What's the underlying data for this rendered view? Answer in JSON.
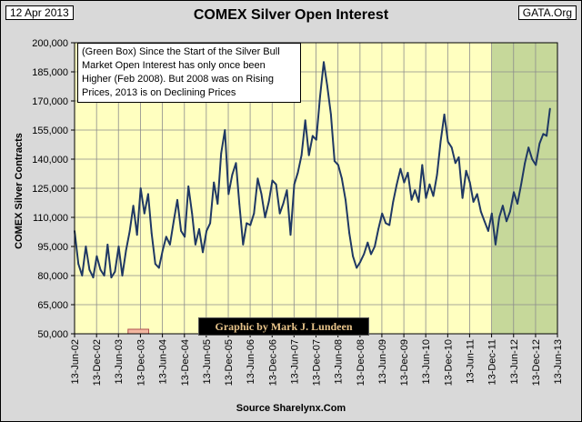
{
  "header": {
    "date": "12 Apr 2013",
    "site": "GATA.Org",
    "source": "Source Sharelynx.Com"
  },
  "chart_data": {
    "type": "line",
    "title": "COMEX Silver Open Interest",
    "ylabel": "COMEX Silver Contracts",
    "xlabel": "",
    "ylim": [
      50000,
      200000
    ],
    "yticks": [
      50000,
      65000,
      80000,
      95000,
      110000,
      125000,
      140000,
      155000,
      170000,
      185000,
      200000
    ],
    "ytick_labels": [
      "50,000",
      "65,000",
      "80,000",
      "95,000",
      "110,000",
      "125,000",
      "140,000",
      "155,000",
      "170,000",
      "185,000",
      "200,000"
    ],
    "xticks": [
      "2002-06-13",
      "2002-12-13",
      "2003-06-13",
      "2003-12-13",
      "2004-06-13",
      "2004-12-13",
      "2005-06-13",
      "2005-12-13",
      "2006-06-13",
      "2006-12-13",
      "2007-06-13",
      "2007-12-13",
      "2008-06-13",
      "2008-12-13",
      "2009-06-13",
      "2009-12-13",
      "2010-06-13",
      "2010-12-13",
      "2011-06-13",
      "2011-12-13",
      "2012-06-13",
      "2012-12-13",
      "2013-06-13"
    ],
    "xtick_labels": [
      "13-Jun-02",
      "13-Dec-02",
      "13-Jun-03",
      "13-Dec-03",
      "13-Jun-04",
      "13-Dec-04",
      "13-Jun-05",
      "13-Dec-05",
      "13-Jun-06",
      "13-Dec-06",
      "13-Jun-07",
      "13-Dec-07",
      "13-Jun-08",
      "13-Dec-08",
      "13-Jun-09",
      "13-Dec-09",
      "13-Jun-10",
      "13-Dec-10",
      "13-Jun-11",
      "13-Dec-11",
      "13-Jun-12",
      "13-Dec-12",
      "13-Jun-13"
    ],
    "xlim": [
      "2002-06-13",
      "2013-06-13"
    ],
    "grid": true,
    "colors": {
      "plot_background": "#ffffc0",
      "highlight": "#c6d89a",
      "line": "#1f3864",
      "small_box": "#f4b7a0",
      "annotation_box": "#ffffff"
    },
    "highlight_range": [
      "2011-12-13",
      "2013-06-13"
    ],
    "small_box_range": [
      "2003-09-01",
      "2004-02-20"
    ],
    "series": [
      {
        "x": [
          "2002-06-13",
          "2002-07-15",
          "2002-08-15",
          "2002-09-15",
          "2002-10-15",
          "2002-11-15",
          "2002-12-15",
          "2003-01-15",
          "2003-02-15",
          "2003-03-15",
          "2003-04-15",
          "2003-05-15",
          "2003-06-15",
          "2003-07-15",
          "2003-08-15",
          "2003-09-15",
          "2003-10-15",
          "2003-11-15",
          "2003-12-15",
          "2004-01-15",
          "2004-02-15",
          "2004-03-15",
          "2004-04-15",
          "2004-05-15",
          "2004-06-15",
          "2004-07-15",
          "2004-08-15",
          "2004-09-15",
          "2004-10-15",
          "2004-11-15",
          "2004-12-15",
          "2005-01-15",
          "2005-02-15",
          "2005-03-15",
          "2005-04-15",
          "2005-05-15",
          "2005-06-15",
          "2005-07-15",
          "2005-08-15",
          "2005-09-15",
          "2005-10-15",
          "2005-11-15",
          "2005-12-15",
          "2006-01-15",
          "2006-02-15",
          "2006-03-15",
          "2006-04-15",
          "2006-05-15",
          "2006-06-15",
          "2006-07-15",
          "2006-08-15",
          "2006-09-15",
          "2006-10-15",
          "2006-11-15",
          "2006-12-15",
          "2007-01-15",
          "2007-02-15",
          "2007-03-15",
          "2007-04-15",
          "2007-05-15",
          "2007-06-15",
          "2007-07-15",
          "2007-08-15",
          "2007-09-15",
          "2007-10-15",
          "2007-11-15",
          "2007-12-15",
          "2008-01-15",
          "2008-02-15",
          "2008-03-15",
          "2008-04-15",
          "2008-05-15",
          "2008-06-15",
          "2008-07-15",
          "2008-08-15",
          "2008-09-15",
          "2008-10-15",
          "2008-11-15",
          "2008-12-15",
          "2009-01-15",
          "2009-02-15",
          "2009-03-15",
          "2009-04-15",
          "2009-05-15",
          "2009-06-15",
          "2009-07-15",
          "2009-08-15",
          "2009-09-15",
          "2009-10-15",
          "2009-11-15",
          "2009-12-15",
          "2010-01-15",
          "2010-02-15",
          "2010-03-15",
          "2010-04-15",
          "2010-05-15",
          "2010-06-15",
          "2010-07-15",
          "2010-08-15",
          "2010-09-15",
          "2010-10-15",
          "2010-11-15",
          "2010-12-15",
          "2011-01-15",
          "2011-02-15",
          "2011-03-15",
          "2011-04-15",
          "2011-05-15",
          "2011-06-15",
          "2011-07-15",
          "2011-08-15",
          "2011-09-15",
          "2011-10-15",
          "2011-11-15",
          "2011-12-15",
          "2012-01-15",
          "2012-02-15",
          "2012-03-15",
          "2012-04-15",
          "2012-05-15",
          "2012-06-15",
          "2012-07-15",
          "2012-08-15",
          "2012-09-15",
          "2012-10-15",
          "2012-11-15",
          "2012-12-15",
          "2013-01-15",
          "2013-02-15",
          "2013-03-15",
          "2013-04-12"
        ],
        "y": [
          103000,
          86000,
          80000,
          95000,
          83000,
          79000,
          90000,
          83000,
          80000,
          96000,
          79000,
          82000,
          95000,
          80000,
          93000,
          103000,
          116000,
          101000,
          125000,
          112000,
          122000,
          102000,
          86000,
          84000,
          93000,
          100000,
          96000,
          108000,
          119000,
          103000,
          100000,
          126000,
          112000,
          96000,
          104000,
          92000,
          103000,
          107000,
          128000,
          117000,
          143000,
          155000,
          122000,
          132000,
          138000,
          117000,
          96000,
          107000,
          106000,
          112000,
          130000,
          122000,
          110000,
          118000,
          129000,
          127000,
          112000,
          117000,
          124000,
          101000,
          127000,
          133000,
          142000,
          160000,
          142000,
          152000,
          150000,
          172000,
          190000,
          178000,
          163000,
          139000,
          137000,
          130000,
          119000,
          102000,
          90000,
          84000,
          87000,
          91000,
          97000,
          91000,
          95000,
          104000,
          112000,
          107000,
          106000,
          118000,
          127000,
          135000,
          128000,
          133000,
          119000,
          124000,
          118000,
          137000,
          120000,
          127000,
          121000,
          132000,
          149000,
          163000,
          149000,
          146000,
          138000,
          141000,
          120000,
          134000,
          128000,
          118000,
          122000,
          113000,
          108000,
          103000,
          112000,
          96000,
          110000,
          116000,
          108000,
          113000,
          123000,
          117000,
          127000,
          138000,
          146000,
          140000,
          137000,
          148000,
          153000,
          152000,
          166000
        ]
      }
    ],
    "annotations": [
      "(Green Box)  Since the Start of the Silver Bull Market Open Interest has only once been Higher (Feb 2008).  But 2008 was on Rising Prices, 2013 is on Declining Prices",
      "Graphic by Mark J. Lundeen"
    ]
  }
}
